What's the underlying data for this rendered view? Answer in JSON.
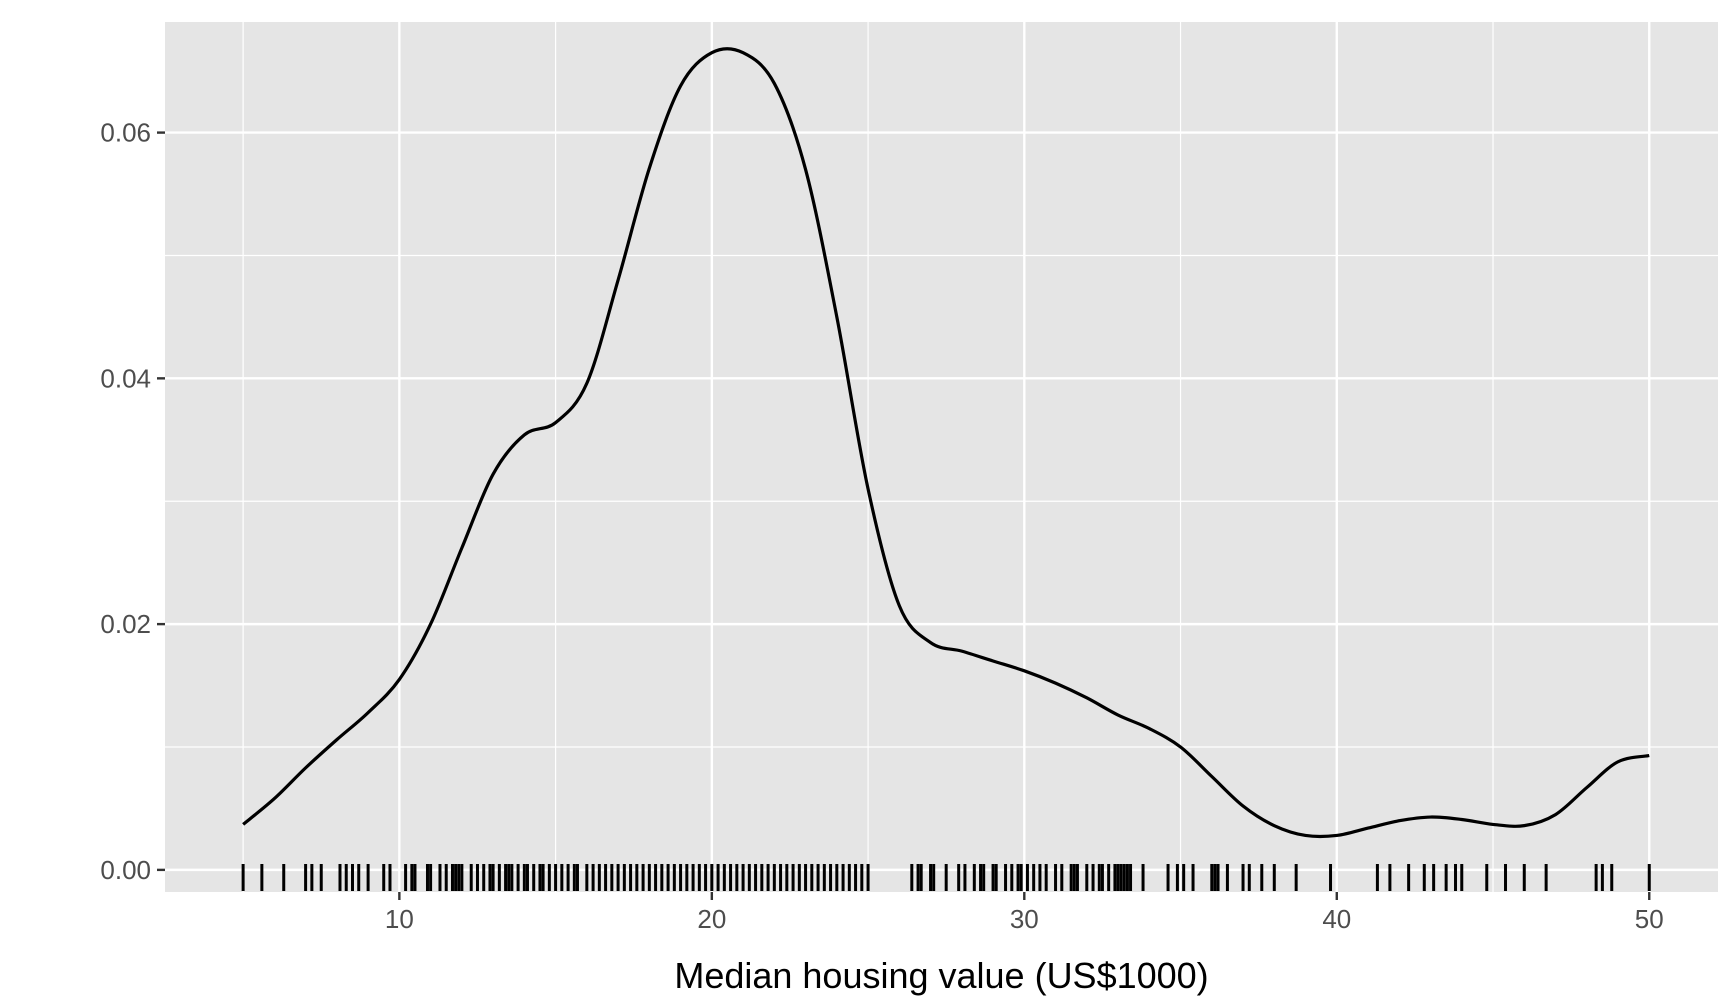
{
  "chart_data": {
    "type": "line",
    "title": "",
    "xlabel": "Median housing value (US$1000)",
    "ylabel": "",
    "xlim": [
      2.5,
      52.2
    ],
    "ylim": [
      -0.0018,
      0.069
    ],
    "x_ticks": [
      10,
      20,
      30,
      40,
      50
    ],
    "x_tick_labels": [
      "10",
      "20",
      "30",
      "40",
      "50"
    ],
    "y_ticks": [
      0.0,
      0.02,
      0.04,
      0.06
    ],
    "y_tick_labels": [
      "0.00",
      "0.02",
      "0.04",
      "0.06"
    ],
    "grid": true,
    "colors": {
      "panel": "#e5e5e5",
      "grid": "#ffffff",
      "line": "#000000"
    },
    "series": [
      {
        "x": [
          5,
          6,
          7,
          8,
          9,
          10,
          11,
          12,
          13,
          14,
          15,
          16,
          17,
          18,
          19,
          20,
          21,
          22,
          23,
          24,
          25,
          26,
          27,
          28,
          29,
          30,
          31,
          32,
          33,
          34,
          35,
          36,
          37,
          38,
          39,
          40,
          41,
          42,
          43,
          44,
          45,
          46,
          47,
          48,
          49,
          50
        ],
        "y": [
          0.0037,
          0.0058,
          0.0083,
          0.0106,
          0.0128,
          0.0155,
          0.02,
          0.0262,
          0.0322,
          0.0354,
          0.0364,
          0.0396,
          0.048,
          0.0571,
          0.0638,
          0.0665,
          0.0665,
          0.064,
          0.057,
          0.045,
          0.031,
          0.0215,
          0.0185,
          0.0178,
          0.017,
          0.0162,
          0.0152,
          0.014,
          0.0126,
          0.0115,
          0.01,
          0.0076,
          0.0052,
          0.0036,
          0.0028,
          0.0028,
          0.0034,
          0.004,
          0.0043,
          0.0041,
          0.0037,
          0.0036,
          0.0045,
          0.0067,
          0.0088,
          0.0093
        ]
      }
    ],
    "rug": [
      5,
      5.6,
      6.3,
      7,
      7.2,
      7.5,
      8.1,
      8.3,
      8.5,
      8.7,
      9,
      9.5,
      9.7,
      10.2,
      10.4,
      10.5,
      10.9,
      11,
      11.3,
      11.5,
      11.7,
      11.8,
      11.9,
      12,
      12.3,
      12.5,
      12.7,
      12.9,
      13,
      13.2,
      13.4,
      13.5,
      13.6,
      13.8,
      14,
      14.1,
      14.3,
      14.5,
      14.6,
      14.8,
      15,
      15.2,
      15.4,
      15.6,
      15.7,
      16,
      16.2,
      16.4,
      16.6,
      16.8,
      17,
      17.2,
      17.4,
      17.6,
      17.8,
      18,
      18.2,
      18.4,
      18.6,
      18.8,
      19,
      19.2,
      19.4,
      19.6,
      19.8,
      20,
      20.2,
      20.4,
      20.6,
      20.8,
      21,
      21.2,
      21.4,
      21.6,
      21.8,
      22,
      22.2,
      22.4,
      22.6,
      22.8,
      23,
      23.2,
      23.4,
      23.6,
      23.8,
      24,
      24.2,
      24.4,
      24.6,
      24.8,
      25,
      26.4,
      26.6,
      26.7,
      27,
      27.1,
      27.5,
      27.9,
      28.1,
      28.4,
      28.6,
      28.7,
      29,
      29.1,
      29.4,
      29.6,
      29.8,
      29.9,
      30.1,
      30.3,
      30.5,
      30.7,
      31,
      31.2,
      31.5,
      31.6,
      31.7,
      32,
      32.2,
      32.4,
      32.5,
      32.7,
      32.9,
      33,
      33.1,
      33.2,
      33.3,
      33.4,
      33.8,
      34.6,
      34.9,
      35.1,
      35.4,
      36,
      36.1,
      36.2,
      36.5,
      37,
      37.2,
      37.6,
      38,
      38.7,
      39.8,
      41.3,
      41.7,
      42.3,
      42.8,
      43.1,
      43.5,
      43.8,
      44,
      44.8,
      45.4,
      46,
      46.7,
      48.3,
      48.5,
      48.8,
      50
    ]
  }
}
